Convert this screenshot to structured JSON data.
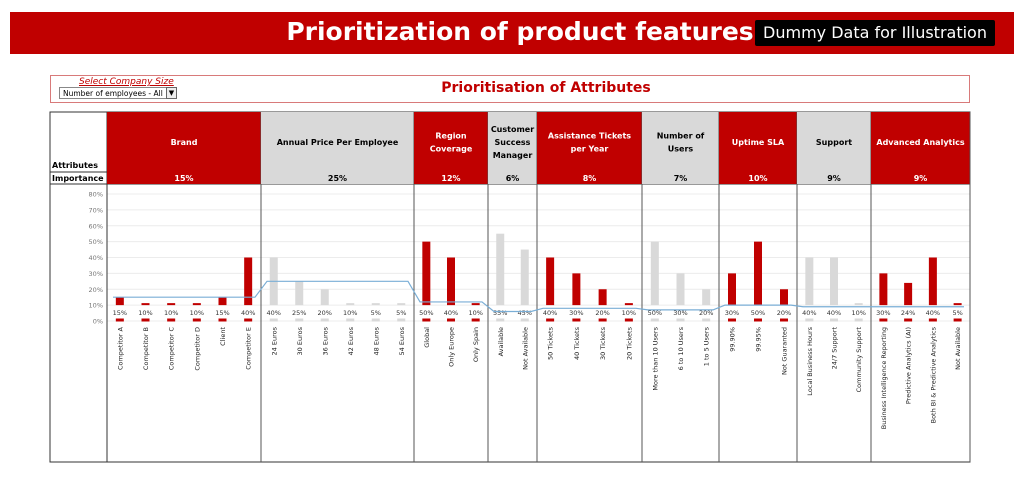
{
  "header": {
    "title": "Prioritization of product features",
    "badge": "Dummy Data for Illustration"
  },
  "controls": {
    "select_label": "Select Company Size",
    "select_value": "Number of employees - All",
    "subtitle": "Prioritisation of Attributes"
  },
  "colors": {
    "red": "#c00000",
    "gray": "#d9d9d9",
    "line": "#7aaed6"
  },
  "chart_data": {
    "type": "bar",
    "row_labels": {
      "attributes": "Attributes",
      "importance": "Importance"
    },
    "ylim": [
      0,
      0.8
    ],
    "yticks": [
      "0%",
      "10%",
      "20%",
      "30%",
      "40%",
      "50%",
      "60%",
      "70%",
      "80%"
    ],
    "grid": true,
    "importance_line": "line",
    "groups": [
      {
        "name": "Brand",
        "importance": "15%",
        "imp": 0.15,
        "color": "red",
        "categories": [
          "Competitor A",
          "Competitor B",
          "Competitor C",
          "Competitor D",
          "Client",
          "Competitor E"
        ],
        "values": [
          0.15,
          0.1,
          0.1,
          0.1,
          0.15,
          0.4
        ],
        "labels": [
          "15%",
          "10%",
          "10%",
          "10%",
          "15%",
          "40%"
        ]
      },
      {
        "name": "Annual Price Per Employee",
        "importance": "25%",
        "imp": 0.25,
        "color": "gray",
        "categories": [
          "24 Euros",
          "30 Euros",
          "36 Euros",
          "42 Euros",
          "48 Euros",
          "54 Euros"
        ],
        "values": [
          0.4,
          0.25,
          0.2,
          0.1,
          0.05,
          0.05
        ],
        "labels": [
          "40%",
          "25%",
          "20%",
          "10%",
          "5%",
          "5%"
        ]
      },
      {
        "name": "Region Coverage",
        "importance": "12%",
        "imp": 0.12,
        "color": "red",
        "categories": [
          "Global",
          "Only Europe",
          "Only Spain"
        ],
        "values": [
          0.5,
          0.4,
          0.1
        ],
        "labels": [
          "50%",
          "40%",
          "10%"
        ]
      },
      {
        "name": "Customer Success Manager",
        "importance": "6%",
        "imp": 0.06,
        "color": "gray",
        "categories": [
          "Available",
          "Not Available"
        ],
        "values": [
          0.55,
          0.45
        ],
        "labels": [
          "55%",
          "45%"
        ]
      },
      {
        "name": "Assistance Tickets per Year",
        "importance": "8%",
        "imp": 0.08,
        "color": "red",
        "categories": [
          "50 Tickets",
          "40 Tickets",
          "30 Tickets",
          "20 Tickets"
        ],
        "values": [
          0.4,
          0.3,
          0.2,
          0.1
        ],
        "labels": [
          "40%",
          "30%",
          "20%",
          "10%"
        ]
      },
      {
        "name": "Number of Users",
        "importance": "7%",
        "imp": 0.07,
        "color": "gray",
        "categories": [
          "More than 10 Users",
          "6 to 10 Users",
          "1 to 5 Users"
        ],
        "values": [
          0.5,
          0.3,
          0.2
        ],
        "labels": [
          "50%",
          "30%",
          "20%"
        ]
      },
      {
        "name": "Uptime SLA",
        "importance": "10%",
        "imp": 0.1,
        "color": "red",
        "categories": [
          "99.90%",
          "99.95%",
          "Not Guaranted"
        ],
        "values": [
          0.3,
          0.5,
          0.2
        ],
        "labels": [
          "30%",
          "50%",
          "20%"
        ]
      },
      {
        "name": "Support",
        "importance": "9%",
        "imp": 0.09,
        "color": "gray",
        "categories": [
          "Local Business Hours",
          "24/7 Support",
          "Community Support"
        ],
        "values": [
          0.4,
          0.4,
          0.1
        ],
        "labels": [
          "40%",
          "40%",
          "10%"
        ]
      },
      {
        "name": "Advanced Analytics",
        "importance": "9%",
        "imp": 0.09,
        "color": "red",
        "categories": [
          "Business Intelligence Reporting",
          "Predictive Analytics (AI)",
          "Both BI & Predictive Analytics",
          "Not Available"
        ],
        "values": [
          0.3,
          0.24,
          0.4,
          0.05
        ],
        "labels": [
          "30%",
          "24%",
          "40%",
          "5%"
        ]
      }
    ]
  }
}
